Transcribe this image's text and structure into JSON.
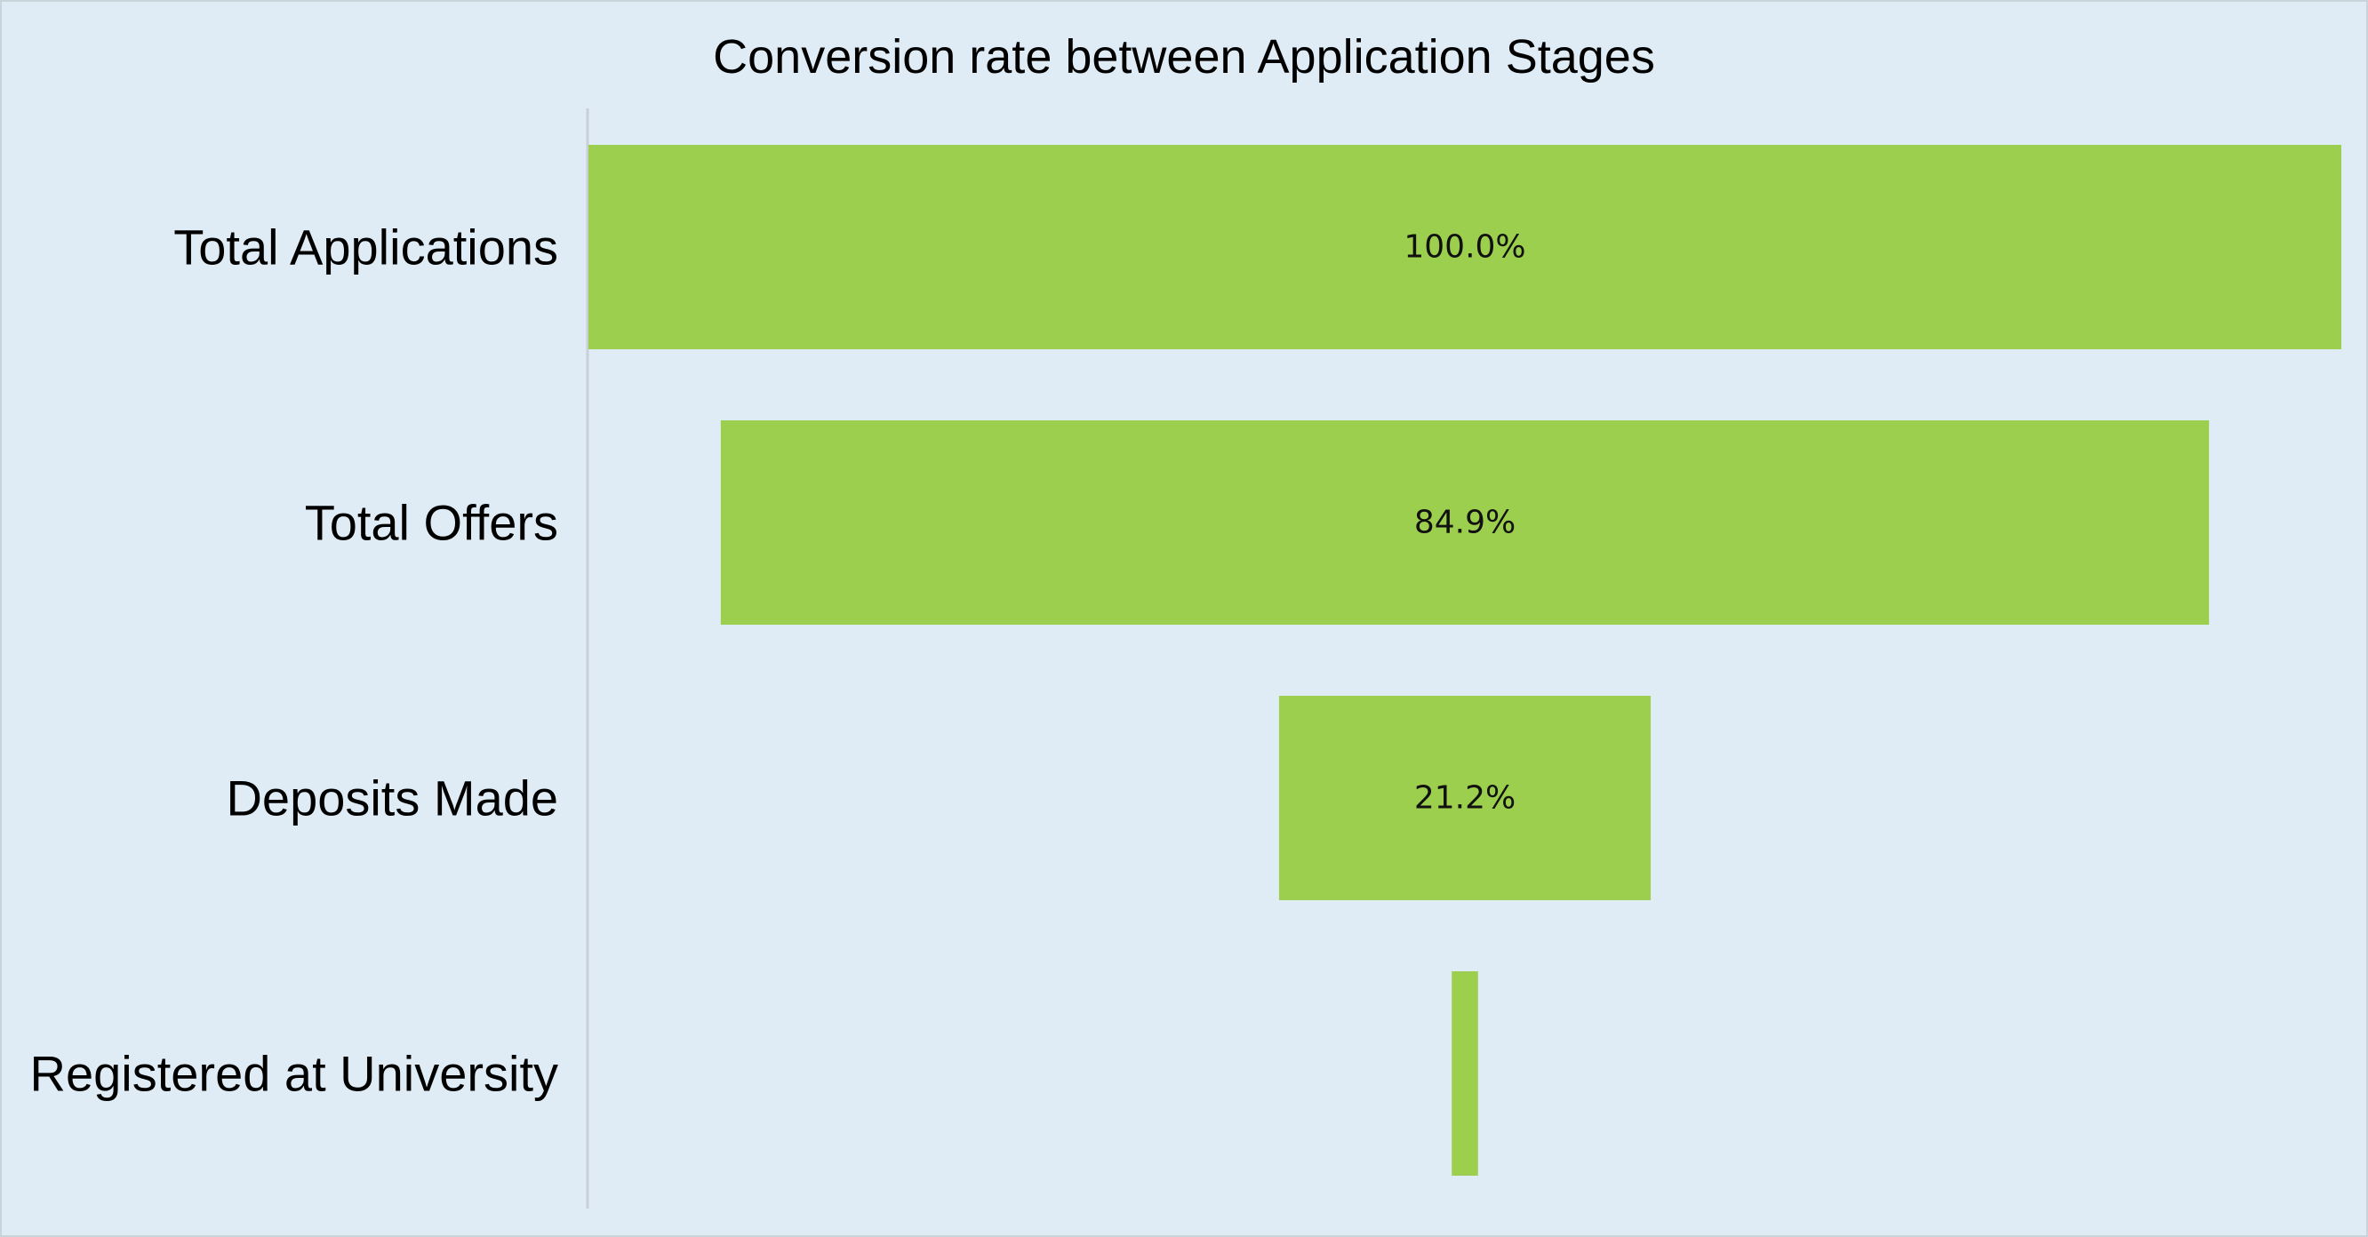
{
  "chart_data": {
    "type": "bar",
    "subtype": "funnel",
    "title": "Conversion rate between Application Stages",
    "categories": [
      "Total Applications",
      "Total Offers",
      "Deposits Made",
      "Registered at University"
    ],
    "values": [
      100.0,
      84.9,
      21.2,
      1.5
    ],
    "data_labels": [
      "100.0%",
      "84.9%",
      "21.2%",
      ""
    ],
    "unit": "%",
    "xlim": [
      0,
      100
    ],
    "grid": false,
    "legend": "none",
    "colors": {
      "background": "#dfecf5",
      "bar": "#9dcf4e",
      "axis": "#c8d0d6",
      "border": "#c9d3da"
    }
  }
}
